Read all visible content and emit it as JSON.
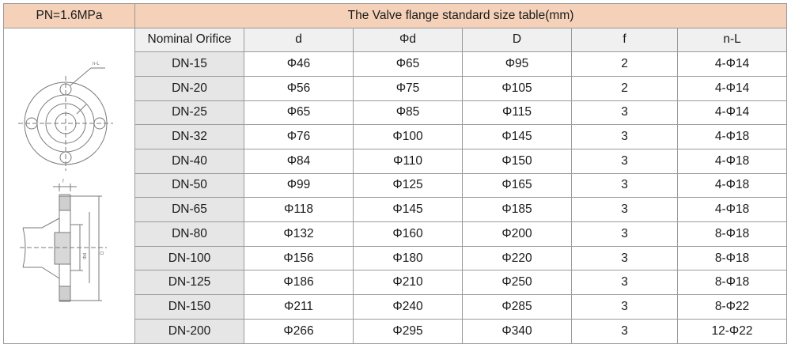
{
  "header": {
    "pressure": "PN=1.6MPa",
    "title": "The Valve flange standard size table(mm)"
  },
  "columns": [
    "Nominal Orifice",
    "d",
    "Φd",
    "D",
    "f",
    "n-L"
  ],
  "rows": [
    {
      "dn": "DN-15",
      "d": "Φ46",
      "phi_d": "Φ65",
      "D": "Φ95",
      "f": "2",
      "nl": "4-Φ14"
    },
    {
      "dn": "DN-20",
      "d": "Φ56",
      "phi_d": "Φ75",
      "D": "Φ105",
      "f": "2",
      "nl": "4-Φ14"
    },
    {
      "dn": "DN-25",
      "d": "Φ65",
      "phi_d": "Φ85",
      "D": "Φ115",
      "f": "3",
      "nl": "4-Φ14"
    },
    {
      "dn": "DN-32",
      "d": "Φ76",
      "phi_d": "Φ100",
      "D": "Φ145",
      "f": "3",
      "nl": "4-Φ18"
    },
    {
      "dn": "DN-40",
      "d": "Φ84",
      "phi_d": "Φ110",
      "D": "Φ150",
      "f": "3",
      "nl": "4-Φ18"
    },
    {
      "dn": "DN-50",
      "d": "Φ99",
      "phi_d": "Φ125",
      "D": "Φ165",
      "f": "3",
      "nl": "4-Φ18"
    },
    {
      "dn": "DN-65",
      "d": "Φ118",
      "phi_d": "Φ145",
      "D": "Φ185",
      "f": "3",
      "nl": "4-Φ18"
    },
    {
      "dn": "DN-80",
      "d": "Φ132",
      "phi_d": "Φ160",
      "D": "Φ200",
      "f": "3",
      "nl": "8-Φ18"
    },
    {
      "dn": "DN-100",
      "d": "Φ156",
      "phi_d": "Φ180",
      "D": "Φ220",
      "f": "3",
      "nl": "8-Φ18"
    },
    {
      "dn": "DN-125",
      "d": "Φ186",
      "phi_d": "Φ210",
      "D": "Φ250",
      "f": "3",
      "nl": "8-Φ18"
    },
    {
      "dn": "DN-150",
      "d": "Φ211",
      "phi_d": "Φ240",
      "D": "Φ285",
      "f": "3",
      "nl": "8-Φ22"
    },
    {
      "dn": "DN-200",
      "d": "Φ266",
      "phi_d": "Φ295",
      "D": "Φ340",
      "f": "3",
      "nl": "12-Φ22"
    }
  ],
  "drawing": {
    "labels": [
      "n-L",
      "Φd",
      "D",
      "f"
    ]
  }
}
